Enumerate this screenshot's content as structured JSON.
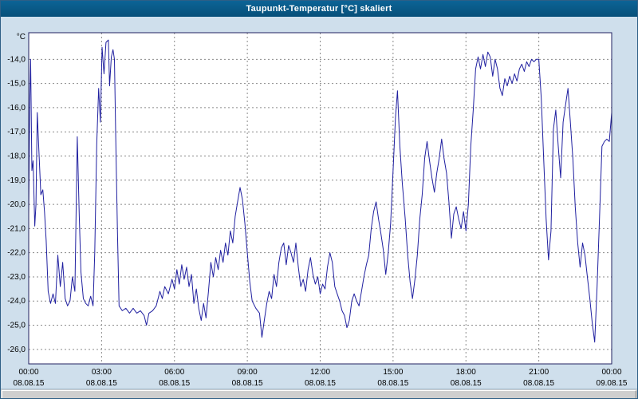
{
  "title": "Taupunkt-Temperatur [°C] skaliert",
  "colors": {
    "titlebar": "#0a5a8c",
    "background": "#cfdfec",
    "plot_bg": "#ffffff",
    "plot_border": "#202060",
    "grid": "#8a8a8a",
    "line": "#2020a0"
  },
  "chart_data": {
    "type": "line",
    "title": "Taupunkt-Temperatur [°C] skaliert",
    "xlabel": "",
    "ylabel": "°C",
    "ylim": [
      -26.6,
      -12.9
    ],
    "xlim_hours": [
      0,
      24
    ],
    "grid": true,
    "legend": "none",
    "y_ticks": [
      {
        "value": -14,
        "label": "-14,0"
      },
      {
        "value": -15,
        "label": "-15,0"
      },
      {
        "value": -16,
        "label": "-16,0"
      },
      {
        "value": -17,
        "label": "-17,0"
      },
      {
        "value": -18,
        "label": "-18,0"
      },
      {
        "value": -19,
        "label": "-19,0"
      },
      {
        "value": -20,
        "label": "-20,0"
      },
      {
        "value": -21,
        "label": "-21,0"
      },
      {
        "value": -22,
        "label": "-22,0"
      },
      {
        "value": -23,
        "label": "-23,0"
      },
      {
        "value": -24,
        "label": "-24,0"
      },
      {
        "value": -25,
        "label": "-25,0"
      },
      {
        "value": -26,
        "label": "-26,0"
      }
    ],
    "x_ticks": [
      {
        "hour": 0,
        "time": "00:00",
        "date": "08.08.15"
      },
      {
        "hour": 3,
        "time": "03:00",
        "date": "08.08.15"
      },
      {
        "hour": 6,
        "time": "06:00",
        "date": "08.08.15"
      },
      {
        "hour": 9,
        "time": "09:00",
        "date": "08.08.15"
      },
      {
        "hour": 12,
        "time": "12:00",
        "date": "08.08.15"
      },
      {
        "hour": 15,
        "time": "15:00",
        "date": "08.08.15"
      },
      {
        "hour": 18,
        "time": "18:00",
        "date": "08.08.15"
      },
      {
        "hour": 21,
        "time": "21:00",
        "date": "08.08.15"
      },
      {
        "hour": 24,
        "time": "00:00",
        "date": "09.08.15"
      }
    ],
    "series": [
      {
        "name": "Taupunkt-Temperatur",
        "color": "#2020a0",
        "points": [
          [
            0.0,
            -20.4
          ],
          [
            0.04,
            -16.0
          ],
          [
            0.08,
            -14.0
          ],
          [
            0.13,
            -18.6
          ],
          [
            0.18,
            -18.2
          ],
          [
            0.25,
            -20.9
          ],
          [
            0.3,
            -20.0
          ],
          [
            0.35,
            -16.2
          ],
          [
            0.42,
            -17.8
          ],
          [
            0.5,
            -19.6
          ],
          [
            0.58,
            -19.4
          ],
          [
            0.65,
            -20.3
          ],
          [
            0.72,
            -21.5
          ],
          [
            0.8,
            -23.6
          ],
          [
            0.9,
            -24.1
          ],
          [
            1.0,
            -23.7
          ],
          [
            1.1,
            -24.1
          ],
          [
            1.2,
            -22.1
          ],
          [
            1.3,
            -23.4
          ],
          [
            1.4,
            -22.4
          ],
          [
            1.5,
            -23.9
          ],
          [
            1.6,
            -24.2
          ],
          [
            1.7,
            -24.0
          ],
          [
            1.8,
            -23.0
          ],
          [
            1.9,
            -23.6
          ],
          [
            2.0,
            -17.2
          ],
          [
            2.08,
            -20.5
          ],
          [
            2.15,
            -22.8
          ],
          [
            2.25,
            -23.9
          ],
          [
            2.35,
            -24.1
          ],
          [
            2.45,
            -24.2
          ],
          [
            2.55,
            -23.8
          ],
          [
            2.65,
            -24.2
          ],
          [
            2.72,
            -22.0
          ],
          [
            2.8,
            -17.5
          ],
          [
            2.88,
            -15.2
          ],
          [
            2.95,
            -16.6
          ],
          [
            3.02,
            -13.5
          ],
          [
            3.1,
            -14.6
          ],
          [
            3.18,
            -13.3
          ],
          [
            3.28,
            -13.2
          ],
          [
            3.33,
            -15.1
          ],
          [
            3.4,
            -13.9
          ],
          [
            3.47,
            -13.6
          ],
          [
            3.53,
            -14.0
          ],
          [
            3.58,
            -17.0
          ],
          [
            3.65,
            -21.0
          ],
          [
            3.72,
            -24.2
          ],
          [
            3.85,
            -24.4
          ],
          [
            4.0,
            -24.3
          ],
          [
            4.15,
            -24.5
          ],
          [
            4.3,
            -24.3
          ],
          [
            4.45,
            -24.5
          ],
          [
            4.6,
            -24.4
          ],
          [
            4.75,
            -24.6
          ],
          [
            4.85,
            -25.0
          ],
          [
            4.95,
            -24.5
          ],
          [
            5.1,
            -24.4
          ],
          [
            5.25,
            -24.2
          ],
          [
            5.4,
            -23.6
          ],
          [
            5.5,
            -23.9
          ],
          [
            5.6,
            -23.4
          ],
          [
            5.75,
            -23.7
          ],
          [
            5.9,
            -23.1
          ],
          [
            6.0,
            -23.5
          ],
          [
            6.1,
            -22.7
          ],
          [
            6.2,
            -23.3
          ],
          [
            6.3,
            -22.5
          ],
          [
            6.4,
            -23.1
          ],
          [
            6.5,
            -22.6
          ],
          [
            6.6,
            -23.4
          ],
          [
            6.7,
            -22.9
          ],
          [
            6.8,
            -24.1
          ],
          [
            6.9,
            -23.5
          ],
          [
            7.0,
            -24.3
          ],
          [
            7.1,
            -24.8
          ],
          [
            7.2,
            -24.1
          ],
          [
            7.3,
            -24.7
          ],
          [
            7.4,
            -23.6
          ],
          [
            7.5,
            -22.4
          ],
          [
            7.6,
            -23.0
          ],
          [
            7.7,
            -22.2
          ],
          [
            7.8,
            -22.7
          ],
          [
            7.9,
            -21.9
          ],
          [
            8.0,
            -22.4
          ],
          [
            8.1,
            -21.6
          ],
          [
            8.2,
            -22.1
          ],
          [
            8.3,
            -21.1
          ],
          [
            8.4,
            -21.6
          ],
          [
            8.5,
            -20.5
          ],
          [
            8.6,
            -19.9
          ],
          [
            8.7,
            -19.3
          ],
          [
            8.8,
            -19.8
          ],
          [
            8.9,
            -20.8
          ],
          [
            9.0,
            -22.0
          ],
          [
            9.1,
            -23.2
          ],
          [
            9.2,
            -24.0
          ],
          [
            9.35,
            -24.3
          ],
          [
            9.5,
            -24.5
          ],
          [
            9.6,
            -25.5
          ],
          [
            9.7,
            -24.8
          ],
          [
            9.8,
            -24.1
          ],
          [
            9.9,
            -23.6
          ],
          [
            10.0,
            -23.9
          ],
          [
            10.1,
            -22.9
          ],
          [
            10.2,
            -23.4
          ],
          [
            10.3,
            -22.4
          ],
          [
            10.4,
            -21.8
          ],
          [
            10.5,
            -21.6
          ],
          [
            10.6,
            -22.5
          ],
          [
            10.7,
            -21.7
          ],
          [
            10.8,
            -22.0
          ],
          [
            10.9,
            -22.4
          ],
          [
            11.0,
            -21.6
          ],
          [
            11.1,
            -22.6
          ],
          [
            11.2,
            -23.4
          ],
          [
            11.3,
            -23.1
          ],
          [
            11.4,
            -23.6
          ],
          [
            11.5,
            -22.7
          ],
          [
            11.6,
            -22.2
          ],
          [
            11.7,
            -22.9
          ],
          [
            11.8,
            -23.3
          ],
          [
            11.9,
            -23.0
          ],
          [
            12.0,
            -23.7
          ],
          [
            12.1,
            -23.3
          ],
          [
            12.2,
            -23.5
          ],
          [
            12.3,
            -22.6
          ],
          [
            12.4,
            -22.0
          ],
          [
            12.5,
            -22.4
          ],
          [
            12.6,
            -23.4
          ],
          [
            12.7,
            -23.7
          ],
          [
            12.8,
            -24.0
          ],
          [
            12.9,
            -24.4
          ],
          [
            13.0,
            -24.6
          ],
          [
            13.1,
            -25.1
          ],
          [
            13.2,
            -24.8
          ],
          [
            13.3,
            -24.0
          ],
          [
            13.4,
            -23.7
          ],
          [
            13.5,
            -24.0
          ],
          [
            13.6,
            -24.2
          ],
          [
            13.7,
            -23.6
          ],
          [
            13.8,
            -23.0
          ],
          [
            13.9,
            -22.5
          ],
          [
            14.0,
            -22.1
          ],
          [
            14.1,
            -21.0
          ],
          [
            14.2,
            -20.3
          ],
          [
            14.3,
            -19.9
          ],
          [
            14.4,
            -20.6
          ],
          [
            14.5,
            -21.2
          ],
          [
            14.6,
            -21.9
          ],
          [
            14.7,
            -22.9
          ],
          [
            14.8,
            -22.0
          ],
          [
            14.9,
            -20.8
          ],
          [
            15.0,
            -18.6
          ],
          [
            15.1,
            -16.4
          ],
          [
            15.18,
            -15.3
          ],
          [
            15.28,
            -17.6
          ],
          [
            15.38,
            -19.1
          ],
          [
            15.5,
            -20.6
          ],
          [
            15.6,
            -22.1
          ],
          [
            15.7,
            -23.2
          ],
          [
            15.8,
            -23.9
          ],
          [
            15.9,
            -23.1
          ],
          [
            16.0,
            -22.1
          ],
          [
            16.1,
            -20.6
          ],
          [
            16.2,
            -19.6
          ],
          [
            16.3,
            -18.1
          ],
          [
            16.4,
            -17.4
          ],
          [
            16.5,
            -18.2
          ],
          [
            16.6,
            -18.9
          ],
          [
            16.7,
            -19.5
          ],
          [
            16.8,
            -18.7
          ],
          [
            16.9,
            -18.1
          ],
          [
            17.0,
            -17.3
          ],
          [
            17.1,
            -18.1
          ],
          [
            17.2,
            -18.7
          ],
          [
            17.3,
            -19.9
          ],
          [
            17.4,
            -21.4
          ],
          [
            17.5,
            -20.4
          ],
          [
            17.6,
            -20.1
          ],
          [
            17.7,
            -20.6
          ],
          [
            17.8,
            -21.0
          ],
          [
            17.9,
            -20.3
          ],
          [
            18.0,
            -21.1
          ],
          [
            18.1,
            -20.0
          ],
          [
            18.2,
            -17.6
          ],
          [
            18.3,
            -16.1
          ],
          [
            18.4,
            -14.4
          ],
          [
            18.5,
            -13.9
          ],
          [
            18.6,
            -14.4
          ],
          [
            18.7,
            -13.8
          ],
          [
            18.8,
            -14.3
          ],
          [
            18.9,
            -13.7
          ],
          [
            19.0,
            -13.9
          ],
          [
            19.1,
            -14.7
          ],
          [
            19.2,
            -14.0
          ],
          [
            19.3,
            -14.4
          ],
          [
            19.4,
            -15.2
          ],
          [
            19.5,
            -15.5
          ],
          [
            19.6,
            -14.8
          ],
          [
            19.7,
            -15.1
          ],
          [
            19.8,
            -14.7
          ],
          [
            19.9,
            -15.0
          ],
          [
            20.0,
            -14.6
          ],
          [
            20.1,
            -14.9
          ],
          [
            20.2,
            -14.4
          ],
          [
            20.3,
            -14.2
          ],
          [
            20.4,
            -14.5
          ],
          [
            20.5,
            -14.1
          ],
          [
            20.6,
            -14.3
          ],
          [
            20.7,
            -14.0
          ],
          [
            20.8,
            -14.1
          ],
          [
            20.9,
            -14.0
          ],
          [
            21.0,
            -14.0
          ],
          [
            21.1,
            -15.6
          ],
          [
            21.2,
            -18.1
          ],
          [
            21.3,
            -20.6
          ],
          [
            21.4,
            -22.3
          ],
          [
            21.5,
            -21.1
          ],
          [
            21.6,
            -16.9
          ],
          [
            21.7,
            -16.1
          ],
          [
            21.8,
            -17.6
          ],
          [
            21.9,
            -18.9
          ],
          [
            22.0,
            -16.6
          ],
          [
            22.1,
            -15.9
          ],
          [
            22.2,
            -15.2
          ],
          [
            22.3,
            -16.6
          ],
          [
            22.4,
            -18.1
          ],
          [
            22.5,
            -20.1
          ],
          [
            22.6,
            -21.6
          ],
          [
            22.7,
            -22.6
          ],
          [
            22.8,
            -21.6
          ],
          [
            22.9,
            -22.1
          ],
          [
            23.0,
            -23.0
          ],
          [
            23.1,
            -23.9
          ],
          [
            23.2,
            -24.9
          ],
          [
            23.3,
            -25.7
          ],
          [
            23.4,
            -23.4
          ],
          [
            23.5,
            -20.5
          ],
          [
            23.6,
            -17.6
          ],
          [
            23.7,
            -17.4
          ],
          [
            23.8,
            -17.3
          ],
          [
            23.9,
            -17.4
          ],
          [
            24.0,
            -16.2
          ]
        ]
      }
    ]
  }
}
